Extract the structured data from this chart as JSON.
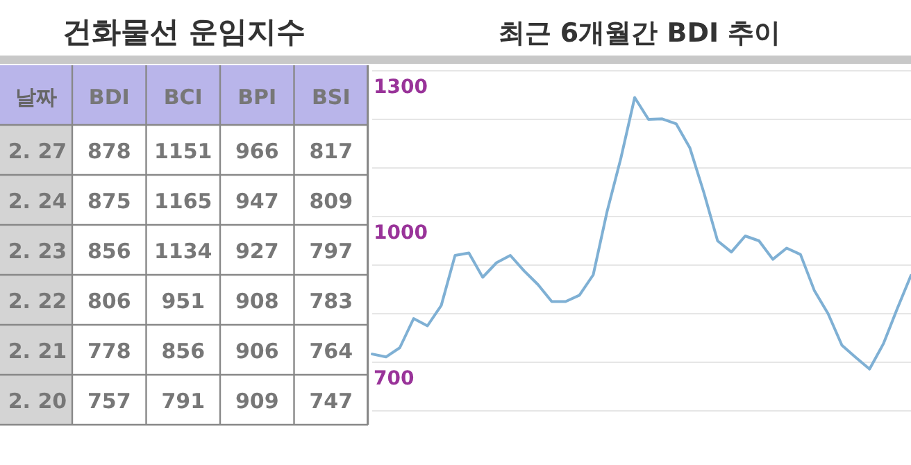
{
  "chart_data": [
    {
      "type": "other",
      "title": "건화물선 운임지수",
      "ylabel": "날짜",
      "categories": [
        "2. 27",
        "2. 24",
        "2. 23",
        "2. 22",
        "2. 21",
        "2. 20"
      ],
      "data_labels": true,
      "series": [
        {
          "name": "BDI",
          "values": [
            878,
            875,
            856,
            806,
            778,
            757
          ]
        },
        {
          "name": "BCI",
          "values": [
            1151,
            1165,
            1134,
            951,
            856,
            791
          ]
        },
        {
          "name": "BPI",
          "values": [
            966,
            947,
            927,
            908,
            906,
            909
          ]
        },
        {
          "name": "BSI",
          "values": [
            817,
            809,
            797,
            783,
            764,
            747
          ]
        }
      ]
    },
    {
      "type": "line",
      "title": "최근 6개월간 BDI 추이",
      "categories": [
        null,
        null,
        null,
        null,
        null,
        null,
        null,
        null,
        null,
        null,
        null,
        null,
        null,
        null,
        null,
        null,
        null,
        null,
        null,
        null,
        null,
        null,
        null,
        null,
        null,
        null,
        null,
        null,
        null,
        null,
        null,
        null,
        null,
        null,
        null,
        null,
        null,
        null,
        null,
        null
      ],
      "series": [
        {
          "color": "#7fb0d4",
          "values": [
            717,
            711,
            730,
            790,
            775,
            817,
            920,
            925,
            875,
            905,
            920,
            888,
            860,
            825,
            825,
            838,
            880,
            1010,
            1120,
            1245,
            1200,
            1201,
            1191,
            1141,
            1050,
            950,
            927,
            960,
            950,
            912,
            935,
            922,
            848,
            800,
            735,
            710,
            686,
            738,
            810,
            879
          ]
        }
      ],
      "ylim": [
        600,
        1300
      ],
      "yticks": [
        {
          "value": 600,
          "label": null
        },
        {
          "value": 700,
          "label": "700"
        },
        {
          "value": 800,
          "label": null
        },
        {
          "value": 900,
          "label": null
        },
        {
          "value": 1000,
          "label": "1000"
        },
        {
          "value": 1100,
          "label": null
        },
        {
          "value": 1200,
          "label": null
        },
        {
          "value": 1300,
          "label": "1300"
        }
      ],
      "grid": "y",
      "tick_labels": "y",
      "marker": "none"
    }
  ]
}
